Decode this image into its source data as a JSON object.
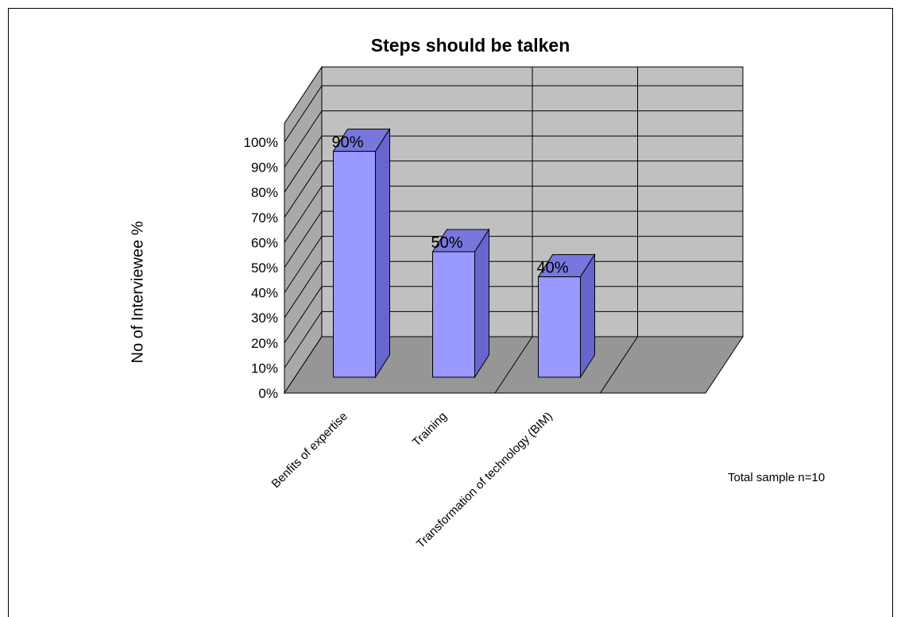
{
  "chart_data": {
    "type": "bar",
    "title": "Steps should be talken",
    "xlabel": "",
    "ylabel": "No of Interviewee %",
    "categories": [
      "Benfits of expertise",
      "Training",
      "Transformation of technology (BIM)"
    ],
    "values": [
      90,
      50,
      40
    ],
    "data_labels": [
      "90%",
      "50%",
      "40%"
    ],
    "ylim": [
      0,
      100
    ],
    "y_ticks": [
      "0%",
      "10%",
      "20%",
      "30%",
      "40%",
      "50%",
      "60%",
      "70%",
      "80%",
      "90%",
      "100%"
    ],
    "grid": true,
    "style": "3d",
    "note": "Total sample n=10",
    "colors": {
      "bar_front": "#9999ff",
      "bar_side": "#6666cc",
      "bar_top": "#7777dd",
      "wall": "#c0c0c0",
      "floor": "#969696"
    }
  }
}
